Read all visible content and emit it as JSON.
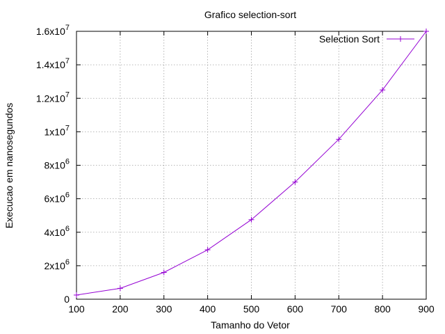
{
  "chart_data": {
    "type": "line",
    "title": "Grafico selection-sort",
    "xlabel": "Tamanho do Vetor",
    "ylabel": "Execucao em nanosegundos",
    "xlim": [
      100,
      900
    ],
    "ylim": [
      0,
      16000000
    ],
    "grid": true,
    "legend_position": "top-right",
    "x_ticks": [
      100,
      200,
      300,
      400,
      500,
      600,
      700,
      800,
      900
    ],
    "y_ticks": [
      {
        "value": 0,
        "mantissa": "0",
        "exp": ""
      },
      {
        "value": 2000000,
        "mantissa": "2x10",
        "exp": "6"
      },
      {
        "value": 4000000,
        "mantissa": "4x10",
        "exp": "6"
      },
      {
        "value": 6000000,
        "mantissa": "6x10",
        "exp": "6"
      },
      {
        "value": 8000000,
        "mantissa": "8x10",
        "exp": "6"
      },
      {
        "value": 10000000,
        "mantissa": "1x10",
        "exp": "7"
      },
      {
        "value": 12000000,
        "mantissa": "1.2x10",
        "exp": "7"
      },
      {
        "value": 14000000,
        "mantissa": "1.4x10",
        "exp": "7"
      },
      {
        "value": 16000000,
        "mantissa": "1.6x10",
        "exp": "7"
      }
    ],
    "series": [
      {
        "name": "Selection Sort",
        "color": "#9400d3",
        "x": [
          100,
          200,
          300,
          400,
          500,
          600,
          700,
          800,
          900
        ],
        "values": [
          250000,
          650000,
          1600000,
          2950000,
          4750000,
          7000000,
          9550000,
          12500000,
          16000000
        ]
      }
    ]
  }
}
